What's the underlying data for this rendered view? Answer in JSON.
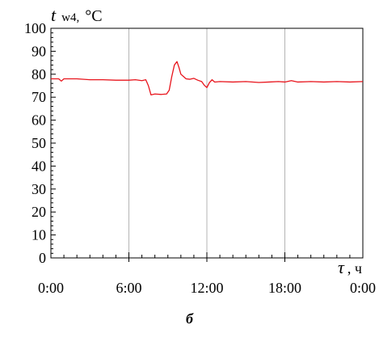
{
  "chart_data": {
    "type": "line",
    "ylabel": {
      "symbol": "t",
      "subscript": "w4,",
      "unit": "°C"
    },
    "xlabel": {
      "symbol": "τ",
      "unit": ", ч"
    },
    "ylim": [
      0,
      100
    ],
    "yticks": [
      0,
      10,
      20,
      30,
      40,
      50,
      60,
      70,
      80,
      90,
      100
    ],
    "y_tick_labels": [
      "0",
      "10",
      "20",
      "30",
      "40",
      "50",
      "60",
      "70",
      "80",
      "90",
      "100"
    ],
    "xlim": [
      0,
      24
    ],
    "xticks": [
      0,
      6,
      12,
      18,
      24
    ],
    "x_tick_labels": [
      "0:00",
      "6:00",
      "12:00",
      "18:00",
      "0:00"
    ],
    "grid": true,
    "series": [
      {
        "color": "#e8141c",
        "x": [
          0,
          0.6,
          0.8,
          1.0,
          2.0,
          3.0,
          4.0,
          5.0,
          6.0,
          6.5,
          7.0,
          7.3,
          7.5,
          7.7,
          8.0,
          8.5,
          8.9,
          9.1,
          9.3,
          9.5,
          9.7,
          9.85,
          10.0,
          10.2,
          10.4,
          10.7,
          11.0,
          11.3,
          11.6,
          11.8,
          12.0,
          12.2,
          12.4,
          12.6,
          13.0,
          14.0,
          15.0,
          16.0,
          16.8,
          17.5,
          18.0,
          18.5,
          19.0,
          20.0,
          21.0,
          22.0,
          23.0,
          24.0
        ],
        "y": [
          78,
          78,
          77,
          78,
          78,
          77.6,
          77.6,
          77.4,
          77.4,
          77.6,
          77.2,
          77.6,
          75,
          71,
          71.4,
          71.2,
          71.4,
          73,
          79,
          84,
          85.5,
          83,
          80,
          79,
          78,
          77.8,
          78.2,
          77.4,
          76.8,
          75.2,
          74.2,
          76.4,
          77.6,
          76.6,
          76.8,
          76.6,
          76.8,
          76.4,
          76.6,
          76.8,
          76.6,
          77.2,
          76.6,
          76.8,
          76.6,
          76.8,
          76.6,
          76.8
        ]
      }
    ]
  },
  "caption": "б"
}
